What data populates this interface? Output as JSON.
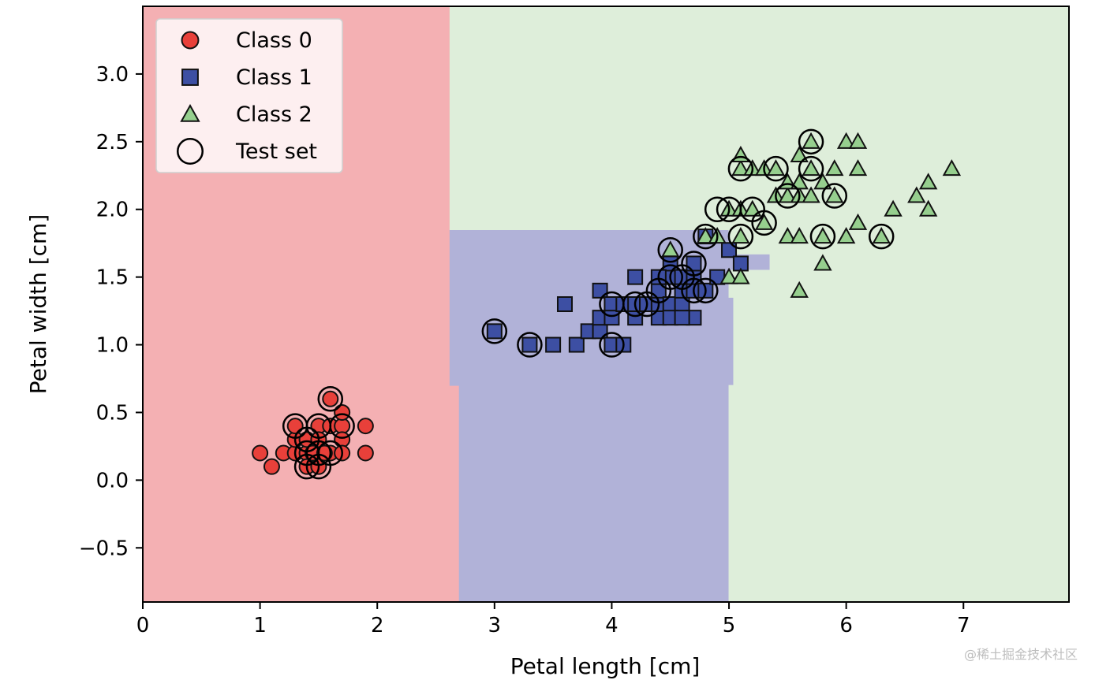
{
  "chart_data": {
    "type": "scatter",
    "title": "",
    "xlabel": "Petal length [cm]",
    "ylabel": "Petal width [cm]",
    "xlim": [
      0,
      7.9
    ],
    "ylim": [
      -0.9,
      3.5
    ],
    "xticks": [
      0,
      1,
      2,
      3,
      4,
      5,
      6,
      7
    ],
    "yticks": [
      -0.5,
      0.0,
      0.5,
      1.0,
      1.5,
      2.0,
      2.5,
      3.0
    ],
    "xtick_labels": [
      "0",
      "1",
      "2",
      "3",
      "4",
      "5",
      "6",
      "7"
    ],
    "ytick_labels": [
      "−0.5",
      "0.0",
      "0.5",
      "1.0",
      "1.5",
      "2.0",
      "2.5",
      "3.0"
    ],
    "grid": false,
    "legend_position": "top-left",
    "legend": [
      {
        "label": "Class 0",
        "marker": "circle",
        "color": "#e8403a"
      },
      {
        "label": "Class 1",
        "marker": "square",
        "color": "#3d4fa3"
      },
      {
        "label": "Class 2",
        "marker": "triangle",
        "color": "#96cf8e"
      },
      {
        "label": "Test set",
        "marker": "ring",
        "color": "none"
      }
    ],
    "decision_regions": [
      {
        "class": "Class 0",
        "color": "#f4b0b3",
        "polygon": [
          [
            0,
            -0.9
          ],
          [
            2.7,
            -0.9
          ],
          [
            2.7,
            0.7
          ],
          [
            2.62,
            0.7
          ],
          [
            2.62,
            3.5
          ],
          [
            0,
            3.5
          ]
        ]
      },
      {
        "class": "Class 1",
        "color": "#b1b2d8",
        "polygon": [
          [
            2.7,
            -0.9
          ],
          [
            5.0,
            -0.9
          ],
          [
            5.0,
            0.7
          ],
          [
            5.04,
            0.7
          ],
          [
            5.04,
            1.35
          ],
          [
            5.0,
            1.35
          ],
          [
            5.0,
            1.55
          ],
          [
            5.35,
            1.55
          ],
          [
            5.35,
            1.67
          ],
          [
            5.0,
            1.67
          ],
          [
            5.0,
            1.85
          ],
          [
            2.62,
            1.85
          ],
          [
            2.62,
            0.7
          ],
          [
            2.7,
            0.7
          ]
        ]
      },
      {
        "class": "Class 2",
        "color": "#deeeda",
        "polygon": [
          [
            5.0,
            -0.9
          ],
          [
            7.9,
            -0.9
          ],
          [
            7.9,
            3.5
          ],
          [
            2.62,
            3.5
          ],
          [
            2.62,
            1.85
          ],
          [
            5.0,
            1.85
          ],
          [
            5.0,
            1.67
          ],
          [
            5.35,
            1.67
          ],
          [
            5.35,
            1.55
          ],
          [
            5.0,
            1.55
          ],
          [
            5.0,
            1.35
          ],
          [
            5.04,
            1.35
          ],
          [
            5.04,
            0.7
          ],
          [
            5.0,
            0.7
          ]
        ]
      }
    ],
    "series": [
      {
        "name": "Class 0",
        "marker": "circle",
        "color": "#e8403a",
        "points": [
          [
            1.0,
            0.2
          ],
          [
            1.1,
            0.1
          ],
          [
            1.2,
            0.2
          ],
          [
            1.3,
            0.2
          ],
          [
            1.3,
            0.3
          ],
          [
            1.3,
            0.4
          ],
          [
            1.4,
            0.2
          ],
          [
            1.4,
            0.3
          ],
          [
            1.4,
            0.1
          ],
          [
            1.5,
            0.2
          ],
          [
            1.5,
            0.1
          ],
          [
            1.5,
            0.4
          ],
          [
            1.5,
            0.3
          ],
          [
            1.6,
            0.2
          ],
          [
            1.6,
            0.6
          ],
          [
            1.6,
            0.4
          ],
          [
            1.7,
            0.4
          ],
          [
            1.7,
            0.5
          ],
          [
            1.7,
            0.3
          ],
          [
            1.7,
            0.2
          ],
          [
            1.9,
            0.2
          ],
          [
            1.9,
            0.4
          ],
          [
            1.45,
            0.2
          ],
          [
            1.55,
            0.2
          ]
        ]
      },
      {
        "name": "Class 1",
        "marker": "square",
        "color": "#3d4fa3",
        "points": [
          [
            3.0,
            1.1
          ],
          [
            3.3,
            1.0
          ],
          [
            3.5,
            1.0
          ],
          [
            3.6,
            1.3
          ],
          [
            3.7,
            1.0
          ],
          [
            3.8,
            1.1
          ],
          [
            3.9,
            1.1
          ],
          [
            3.9,
            1.2
          ],
          [
            3.9,
            1.4
          ],
          [
            4.0,
            1.0
          ],
          [
            4.0,
            1.3
          ],
          [
            4.0,
            1.2
          ],
          [
            4.1,
            1.0
          ],
          [
            4.1,
            1.3
          ],
          [
            4.2,
            1.2
          ],
          [
            4.2,
            1.3
          ],
          [
            4.2,
            1.5
          ],
          [
            4.3,
            1.3
          ],
          [
            4.4,
            1.2
          ],
          [
            4.4,
            1.3
          ],
          [
            4.4,
            1.4
          ],
          [
            4.5,
            1.3
          ],
          [
            4.5,
            1.5
          ],
          [
            4.5,
            1.6
          ],
          [
            4.6,
            1.3
          ],
          [
            4.6,
            1.4
          ],
          [
            4.6,
            1.5
          ],
          [
            4.7,
            1.2
          ],
          [
            4.7,
            1.4
          ],
          [
            4.7,
            1.5
          ],
          [
            4.7,
            1.6
          ],
          [
            4.8,
            1.4
          ],
          [
            4.8,
            1.8
          ],
          [
            4.9,
            1.5
          ],
          [
            5.0,
            1.7
          ],
          [
            5.1,
            1.6
          ],
          [
            4.5,
            1.2
          ],
          [
            4.6,
            1.2
          ],
          [
            4.4,
            1.5
          ]
        ]
      },
      {
        "name": "Class 2",
        "marker": "triangle",
        "color": "#96cf8e",
        "points": [
          [
            4.5,
            1.7
          ],
          [
            4.8,
            1.8
          ],
          [
            4.9,
            1.8
          ],
          [
            5.0,
            1.5
          ],
          [
            5.0,
            2.0
          ],
          [
            5.1,
            1.5
          ],
          [
            5.1,
            1.8
          ],
          [
            5.1,
            2.0
          ],
          [
            5.1,
            2.3
          ],
          [
            5.1,
            2.4
          ],
          [
            5.2,
            2.0
          ],
          [
            5.2,
            2.3
          ],
          [
            5.3,
            1.9
          ],
          [
            5.3,
            2.3
          ],
          [
            5.4,
            2.1
          ],
          [
            5.4,
            2.3
          ],
          [
            5.5,
            1.8
          ],
          [
            5.5,
            2.1
          ],
          [
            5.5,
            2.2
          ],
          [
            5.6,
            1.4
          ],
          [
            5.6,
            1.8
          ],
          [
            5.6,
            2.1
          ],
          [
            5.6,
            2.2
          ],
          [
            5.6,
            2.4
          ],
          [
            5.7,
            2.1
          ],
          [
            5.7,
            2.3
          ],
          [
            5.7,
            2.5
          ],
          [
            5.8,
            1.6
          ],
          [
            5.8,
            1.8
          ],
          [
            5.8,
            2.2
          ],
          [
            5.9,
            2.1
          ],
          [
            5.9,
            2.3
          ],
          [
            6.0,
            1.8
          ],
          [
            6.0,
            2.5
          ],
          [
            6.1,
            1.9
          ],
          [
            6.1,
            2.3
          ],
          [
            6.1,
            2.5
          ],
          [
            6.3,
            1.8
          ],
          [
            6.4,
            2.0
          ],
          [
            6.6,
            2.1
          ],
          [
            6.7,
            2.0
          ],
          [
            6.7,
            2.2
          ],
          [
            6.9,
            2.3
          ]
        ]
      }
    ],
    "test_set": [
      [
        1.3,
        0.4
      ],
      [
        1.4,
        0.3
      ],
      [
        1.4,
        0.2
      ],
      [
        1.4,
        0.1
      ],
      [
        1.5,
        0.1
      ],
      [
        1.5,
        0.4
      ],
      [
        1.6,
        0.2
      ],
      [
        1.6,
        0.6
      ],
      [
        1.7,
        0.4
      ],
      [
        1.5,
        0.2
      ],
      [
        3.0,
        1.1
      ],
      [
        3.3,
        1.0
      ],
      [
        4.0,
        1.0
      ],
      [
        4.0,
        1.3
      ],
      [
        4.2,
        1.3
      ],
      [
        4.3,
        1.3
      ],
      [
        4.4,
        1.4
      ],
      [
        4.5,
        1.5
      ],
      [
        4.5,
        1.7
      ],
      [
        4.6,
        1.5
      ],
      [
        4.7,
        1.6
      ],
      [
        4.7,
        1.4
      ],
      [
        4.8,
        1.4
      ],
      [
        4.8,
        1.8
      ],
      [
        4.9,
        2.0
      ],
      [
        5.0,
        2.0
      ],
      [
        5.1,
        1.8
      ],
      [
        5.1,
        2.3
      ],
      [
        5.2,
        2.0
      ],
      [
        5.3,
        1.9
      ],
      [
        5.4,
        2.3
      ],
      [
        5.5,
        2.1
      ],
      [
        5.7,
        2.3
      ],
      [
        5.7,
        2.5
      ],
      [
        5.8,
        1.8
      ],
      [
        5.9,
        2.1
      ],
      [
        6.3,
        1.8
      ]
    ]
  },
  "watermark": "@稀土掘金技术社区"
}
